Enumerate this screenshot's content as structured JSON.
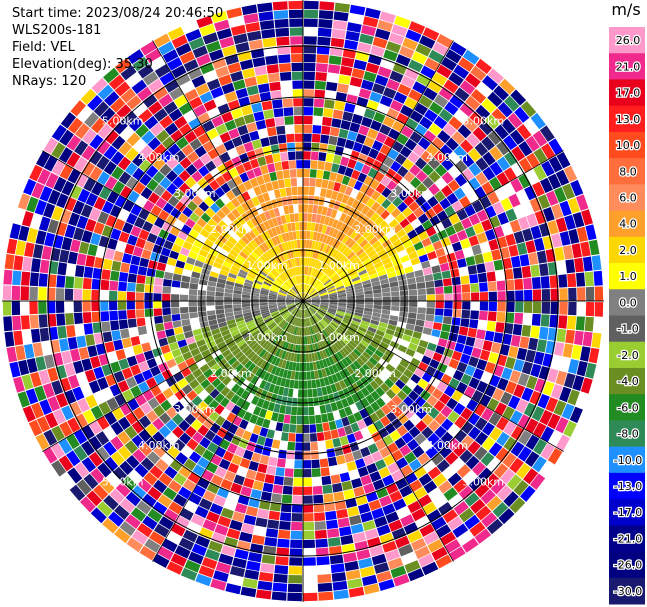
{
  "header": {
    "start_time": "Start time: 2023/08/24 20:46:50",
    "instrument": "WLS200s-181",
    "field": "Field: VEL",
    "elevation": "Elevation(deg): 35.30",
    "nrays": "NRays: 120"
  },
  "chart_data": {
    "type": "heatmap",
    "projection": "polar-ppi",
    "field": "VEL",
    "units": "m/s",
    "n_rays": 120,
    "range_rings_km": [
      1,
      2,
      3,
      4,
      5
    ],
    "ring_labels": [
      "1.00km",
      "2.00km",
      "3.00km",
      "4.00km",
      "5.00km"
    ],
    "max_range_km": 5.9,
    "ring_label_quadrants": [
      "top-left",
      "top-right",
      "bottom-left",
      "bottom-right"
    ],
    "velocity_structure": {
      "north_half_sign": "positive",
      "south_half_sign": "negative",
      "near_field_speed_ms": [
        0,
        6
      ],
      "far_field": "noise beyond ~2.5 km"
    },
    "colorbar": {
      "title": "m/s",
      "ticks": [
        "26.0",
        "21.0",
        "17.0",
        "13.0",
        "10.0",
        "8.0",
        "6.0",
        "4.0",
        "2.0",
        "1.0",
        "0.0",
        "-1.0",
        "-2.0",
        "-4.0",
        "-6.0",
        "-8.0",
        "-10.0",
        "-13.0",
        "-17.0",
        "-21.0",
        "-26.0",
        "-30.0"
      ],
      "bounds": [
        30,
        26,
        21,
        17,
        13,
        10,
        8,
        6,
        4,
        2,
        1,
        0,
        -1,
        -2,
        -4,
        -6,
        -8,
        -10,
        -13,
        -17,
        -21,
        -26,
        -30
      ],
      "colors": [
        "#ff99cc",
        "#f02a8c",
        "#e8001c",
        "#ff1e1e",
        "#ff4b1e",
        "#ff6e3c",
        "#ff8c5a",
        "#ffa02d",
        "#ffd700",
        "#ffff00",
        "#808080",
        "#606060",
        "#9acd32",
        "#6b8e23",
        "#228b22",
        "#2e8b57",
        "#1e90ff",
        "#0000ff",
        "#0000cd",
        "#00008b",
        "#000080",
        "#191970"
      ]
    }
  }
}
